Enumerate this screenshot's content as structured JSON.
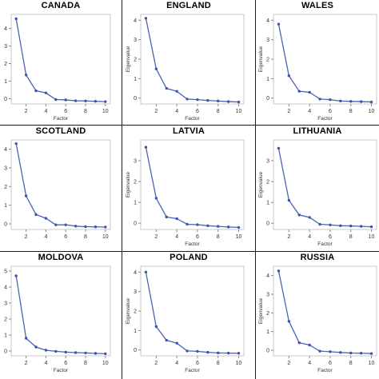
{
  "theme": {
    "line_color": "#4a63b4",
    "marker_color": "#3a55ad",
    "frame_color": "#c8c8c8",
    "text_color": "#333333"
  },
  "chart_data": [
    {
      "type": "line",
      "title": "CANADA",
      "xlabel": "Factor",
      "ylabel": "",
      "x": [
        1,
        2,
        3,
        4,
        5,
        6,
        7,
        8,
        9,
        10
      ],
      "xticks": [
        2,
        4,
        6,
        8,
        10
      ],
      "yticks": [
        0,
        1,
        2,
        3,
        4
      ],
      "ylim": [
        -0.3,
        4.8
      ],
      "xlim": [
        0.5,
        10.5
      ],
      "series": [
        {
          "values": [
            4.55,
            1.35,
            0.45,
            0.33,
            -0.05,
            -0.07,
            -0.12,
            -0.13,
            -0.15,
            -0.17
          ]
        }
      ]
    },
    {
      "type": "line",
      "title": "ENGLAND",
      "xlabel": "Factor",
      "ylabel": "Eigenvalue",
      "x": [
        1,
        2,
        3,
        4,
        5,
        6,
        7,
        8,
        9,
        10
      ],
      "xticks": [
        2,
        4,
        6,
        8,
        10
      ],
      "yticks": [
        0,
        1,
        2,
        3,
        4
      ],
      "ylim": [
        -0.3,
        4.3
      ],
      "xlim": [
        0.5,
        10.5
      ],
      "series": [
        {
          "values": [
            4.1,
            1.5,
            0.5,
            0.35,
            -0.05,
            -0.08,
            -0.12,
            -0.15,
            -0.18,
            -0.2
          ]
        }
      ]
    },
    {
      "type": "line",
      "title": "WALES",
      "xlabel": "Factor",
      "ylabel": "Eigenvalue",
      "x": [
        1,
        2,
        3,
        4,
        5,
        6,
        7,
        8,
        9,
        10
      ],
      "xticks": [
        2,
        4,
        6,
        8,
        10
      ],
      "yticks": [
        0,
        1,
        2,
        3,
        4
      ],
      "ylim": [
        -0.3,
        4.3
      ],
      "xlim": [
        0.5,
        10.5
      ],
      "series": [
        {
          "values": [
            3.8,
            1.15,
            0.35,
            0.3,
            -0.05,
            -0.08,
            -0.15,
            -0.17,
            -0.18,
            -0.2
          ]
        }
      ]
    },
    {
      "type": "line",
      "title": "SCOTLAND",
      "xlabel": "",
      "ylabel": "",
      "x": [
        1,
        2,
        3,
        4,
        5,
        6,
        7,
        8,
        9,
        10
      ],
      "xticks": [
        2,
        4,
        6,
        8,
        10
      ],
      "yticks": [
        0,
        1,
        2,
        3,
        4
      ],
      "ylim": [
        -0.3,
        4.5
      ],
      "xlim": [
        0.5,
        10.5
      ],
      "series": [
        {
          "values": [
            4.3,
            1.5,
            0.5,
            0.3,
            -0.05,
            -0.05,
            -0.12,
            -0.15,
            -0.16,
            -0.17
          ]
        }
      ]
    },
    {
      "type": "line",
      "title": "LATVIA",
      "xlabel": "Factor",
      "ylabel": "Eigenvalue",
      "x": [
        1,
        2,
        3,
        4,
        5,
        6,
        7,
        8,
        9,
        10
      ],
      "xticks": [
        2,
        4,
        6,
        8,
        10
      ],
      "yticks": [
        0,
        1,
        2,
        3
      ],
      "ylim": [
        -0.3,
        4.0
      ],
      "xlim": [
        0.5,
        10.5
      ],
      "series": [
        {
          "values": [
            3.65,
            1.2,
            0.3,
            0.22,
            -0.05,
            -0.07,
            -0.12,
            -0.15,
            -0.18,
            -0.2
          ]
        }
      ]
    },
    {
      "type": "line",
      "title": "LITHUANIA",
      "xlabel": "Factor",
      "ylabel": "Eigenvalue",
      "x": [
        1,
        2,
        3,
        4,
        5,
        6,
        7,
        8,
        9,
        10
      ],
      "xticks": [
        2,
        4,
        6,
        8,
        10
      ],
      "yticks": [
        0,
        1,
        2,
        3
      ],
      "ylim": [
        -0.3,
        4.0
      ],
      "xlim": [
        0.5,
        10.5
      ],
      "series": [
        {
          "values": [
            3.6,
            1.1,
            0.4,
            0.28,
            -0.05,
            -0.08,
            -0.12,
            -0.13,
            -0.15,
            -0.17
          ]
        }
      ]
    },
    {
      "type": "line",
      "title": "MOLDOVA",
      "xlabel": "Factor",
      "ylabel": "",
      "x": [
        1,
        2,
        3,
        4,
        5,
        6,
        7,
        8,
        9,
        10
      ],
      "xticks": [
        2,
        4,
        6,
        8,
        10
      ],
      "yticks": [
        0,
        1,
        2,
        3,
        4,
        5
      ],
      "ylim": [
        -0.3,
        5.3
      ],
      "xlim": [
        0.5,
        10.5
      ],
      "series": [
        {
          "values": [
            4.7,
            0.8,
            0.25,
            0.05,
            -0.02,
            -0.07,
            -0.1,
            -0.12,
            -0.15,
            -0.17
          ]
        }
      ]
    },
    {
      "type": "line",
      "title": "POLAND",
      "xlabel": "Factor",
      "ylabel": "Eigenvalue",
      "x": [
        1,
        2,
        3,
        4,
        5,
        6,
        7,
        8,
        9,
        10
      ],
      "xticks": [
        2,
        4,
        6,
        8,
        10
      ],
      "yticks": [
        0,
        1,
        2,
        3,
        4
      ],
      "ylim": [
        -0.3,
        4.3
      ],
      "xlim": [
        0.5,
        10.5
      ],
      "series": [
        {
          "values": [
            4.0,
            1.2,
            0.5,
            0.35,
            -0.05,
            -0.07,
            -0.12,
            -0.15,
            -0.16,
            -0.17
          ]
        }
      ]
    },
    {
      "type": "line",
      "title": "RUSSIA",
      "xlabel": "Factor",
      "ylabel": "Eigenvalue",
      "x": [
        1,
        2,
        3,
        4,
        5,
        6,
        7,
        8,
        9,
        10
      ],
      "xticks": [
        2,
        4,
        6,
        8,
        10
      ],
      "yticks": [
        0,
        1,
        2,
        3,
        4
      ],
      "ylim": [
        -0.3,
        4.5
      ],
      "xlim": [
        0.5,
        10.5
      ],
      "series": [
        {
          "values": [
            4.25,
            1.55,
            0.4,
            0.28,
            -0.05,
            -0.08,
            -0.12,
            -0.15,
            -0.16,
            -0.18
          ]
        }
      ]
    }
  ]
}
